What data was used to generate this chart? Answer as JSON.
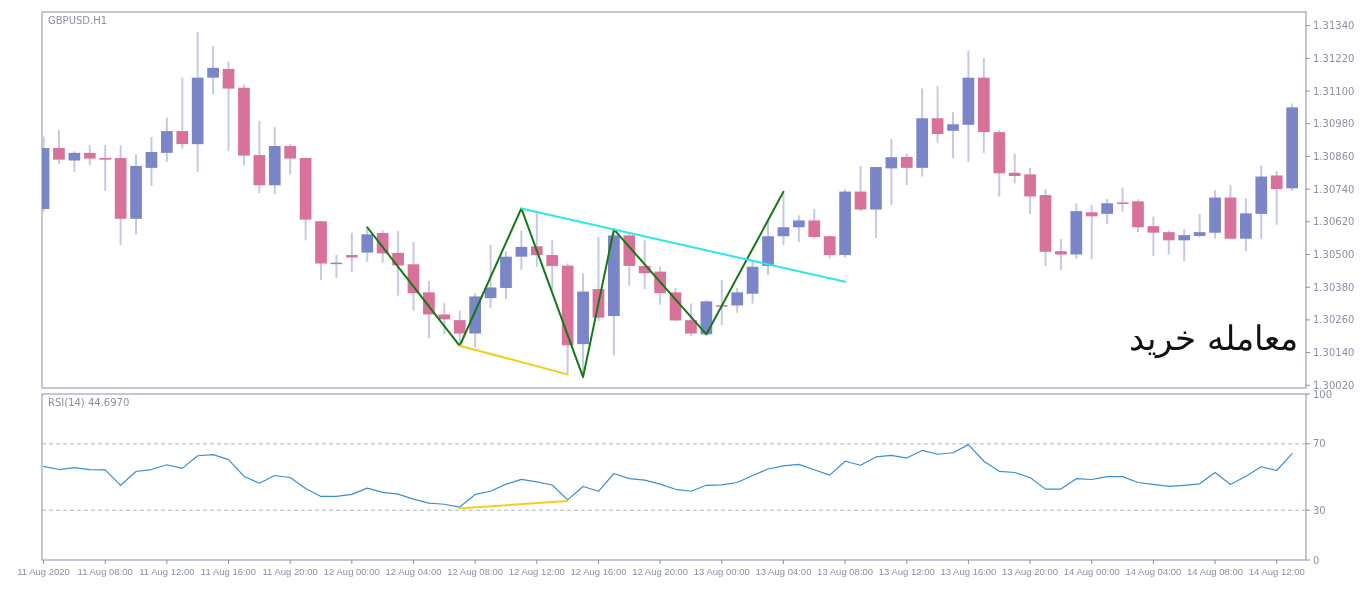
{
  "chart_data": [
    {
      "type": "candlestick",
      "title": "GBPUSD.H1",
      "tick_labels": "y",
      "x": [
        "2020-08-11T04:00",
        "2020-08-11T05:00",
        "2020-08-11T06:00",
        "2020-08-11T07:00",
        "2020-08-11T08:00",
        "2020-08-11T09:00",
        "2020-08-11T10:00",
        "2020-08-11T11:00",
        "2020-08-11T12:00",
        "2020-08-11T13:00",
        "2020-08-11T14:00",
        "2020-08-11T15:00",
        "2020-08-11T16:00",
        "2020-08-11T17:00",
        "2020-08-11T18:00",
        "2020-08-11T19:00",
        "2020-08-11T20:00",
        "2020-08-11T21:00",
        "2020-08-11T22:00",
        "2020-08-11T23:00",
        "2020-08-12T00:00",
        "2020-08-12T01:00",
        "2020-08-12T02:00",
        "2020-08-12T03:00",
        "2020-08-12T04:00",
        "2020-08-12T05:00",
        "2020-08-12T06:00",
        "2020-08-12T07:00",
        "2020-08-12T08:00",
        "2020-08-12T09:00",
        "2020-08-12T10:00",
        "2020-08-12T11:00",
        "2020-08-12T12:00",
        "2020-08-12T13:00",
        "2020-08-12T14:00",
        "2020-08-12T15:00",
        "2020-08-12T16:00",
        "2020-08-12T17:00",
        "2020-08-12T18:00",
        "2020-08-12T19:00",
        "2020-08-12T20:00",
        "2020-08-12T21:00",
        "2020-08-12T22:00",
        "2020-08-12T23:00",
        "2020-08-13T00:00",
        "2020-08-13T01:00",
        "2020-08-13T02:00",
        "2020-08-13T03:00",
        "2020-08-13T04:00",
        "2020-08-13T05:00",
        "2020-08-13T06:00",
        "2020-08-13T07:00",
        "2020-08-13T08:00",
        "2020-08-13T09:00",
        "2020-08-13T10:00",
        "2020-08-13T11:00",
        "2020-08-13T12:00",
        "2020-08-13T13:00",
        "2020-08-13T14:00",
        "2020-08-13T15:00",
        "2020-08-13T16:00",
        "2020-08-13T17:00",
        "2020-08-13T18:00",
        "2020-08-13T19:00",
        "2020-08-13T20:00",
        "2020-08-13T21:00",
        "2020-08-13T22:00",
        "2020-08-13T23:00",
        "2020-08-14T00:00",
        "2020-08-14T01:00",
        "2020-08-14T02:00",
        "2020-08-14T03:00",
        "2020-08-14T04:00",
        "2020-08-14T05:00",
        "2020-08-14T06:00",
        "2020-08-14T07:00",
        "2020-08-14T08:00",
        "2020-08-14T09:00",
        "2020-08-14T10:00",
        "2020-08-14T11:00",
        "2020-08-14T12:00",
        "2020-08-14T13:00"
      ],
      "ohlc": [
        [
          1.30667,
          1.30933,
          1.30655,
          1.30891
        ],
        [
          1.30891,
          1.30957,
          1.30833,
          1.30848
        ],
        [
          1.30845,
          1.30879,
          1.30803,
          1.30873
        ],
        [
          1.30873,
          1.30901,
          1.30827,
          1.30852
        ],
        [
          1.30854,
          1.30901,
          1.30734,
          1.30848
        ],
        [
          1.30854,
          1.30901,
          1.30534,
          1.30631
        ],
        [
          1.30631,
          1.30867,
          1.30573,
          1.30825
        ],
        [
          1.30818,
          1.30931,
          1.30752,
          1.30876
        ],
        [
          1.30873,
          1.31003,
          1.3084,
          1.30953
        ],
        [
          1.30953,
          1.31149,
          1.30888,
          1.30905
        ],
        [
          1.30905,
          1.31316,
          1.30803,
          1.31149
        ],
        [
          1.31149,
          1.31265,
          1.31088,
          1.31185
        ],
        [
          1.31181,
          1.31208,
          1.30881,
          1.31109
        ],
        [
          1.31112,
          1.31123,
          1.30827,
          1.30863
        ],
        [
          1.30865,
          1.30991,
          1.30725,
          1.30754
        ],
        [
          1.30754,
          1.30967,
          1.30721,
          1.30898
        ],
        [
          1.30898,
          1.30905,
          1.30794,
          1.30852
        ],
        [
          1.30854,
          1.30854,
          1.30552,
          1.30628
        ],
        [
          1.30622,
          1.30622,
          1.30407,
          1.30467
        ],
        [
          1.30467,
          1.30498,
          1.30413,
          1.3047
        ],
        [
          1.30498,
          1.3058,
          1.30435,
          1.30489
        ],
        [
          1.30507,
          1.306,
          1.30473,
          1.30574
        ],
        [
          1.30579,
          1.30588,
          1.3047,
          1.30504
        ],
        [
          1.30506,
          1.30586,
          1.30349,
          1.3046
        ],
        [
          1.30464,
          1.30546,
          1.30294,
          1.30358
        ],
        [
          1.30361,
          1.30403,
          1.30193,
          1.3028
        ],
        [
          1.3028,
          1.30322,
          1.30207,
          1.30262
        ],
        [
          1.30259,
          1.30294,
          1.30171,
          1.3021
        ],
        [
          1.3021,
          1.30358,
          1.30159,
          1.30346
        ],
        [
          1.3034,
          1.30536,
          1.30304,
          1.30379
        ],
        [
          1.30377,
          1.30512,
          1.30337,
          1.30492
        ],
        [
          1.30492,
          1.30588,
          1.30443,
          1.30528
        ],
        [
          1.3053,
          1.30655,
          1.30455,
          1.30498
        ],
        [
          1.30498,
          1.30552,
          1.3037,
          1.30458
        ],
        [
          1.30459,
          1.30467,
          1.30062,
          1.30167
        ],
        [
          1.30171,
          1.30431,
          1.30062,
          1.30364
        ],
        [
          1.30373,
          1.30564,
          1.30256,
          1.30268
        ],
        [
          1.30274,
          1.30588,
          1.30129,
          1.3057
        ],
        [
          1.3057,
          1.30576,
          1.30385,
          1.30458
        ],
        [
          1.30458,
          1.30552,
          1.30373,
          1.30431
        ],
        [
          1.30437,
          1.30455,
          1.30316,
          1.30358
        ],
        [
          1.30361,
          1.30377,
          1.30256,
          1.30258
        ],
        [
          1.30259,
          1.3032,
          1.30201,
          1.3021
        ],
        [
          1.30207,
          1.30332,
          1.30204,
          1.30328
        ],
        [
          1.30314,
          1.30407,
          1.3024,
          1.3031
        ],
        [
          1.30313,
          1.30377,
          1.30286,
          1.30361
        ],
        [
          1.30356,
          1.30473,
          1.3032,
          1.30455
        ],
        [
          1.30458,
          1.30625,
          1.30425,
          1.30567
        ],
        [
          1.30567,
          1.30721,
          1.30534,
          1.306
        ],
        [
          1.306,
          1.30643,
          1.30546,
          1.30625
        ],
        [
          1.30625,
          1.30667,
          1.30558,
          1.30564
        ],
        [
          1.30567,
          1.3057,
          1.30485,
          1.30498
        ],
        [
          1.30498,
          1.3074,
          1.30489,
          1.30731
        ],
        [
          1.30731,
          1.30824,
          1.30659,
          1.30665
        ],
        [
          1.30665,
          1.30821,
          1.30561,
          1.30821
        ],
        [
          1.30816,
          1.30924,
          1.30682,
          1.30857
        ],
        [
          1.30858,
          1.3087,
          1.30754,
          1.30818
        ],
        [
          1.30818,
          1.31109,
          1.30786,
          1.31
        ],
        [
          1.31,
          1.31117,
          1.30909,
          1.30942
        ],
        [
          1.30954,
          1.31022,
          1.30854,
          1.30978
        ],
        [
          1.30976,
          1.31248,
          1.3084,
          1.31149
        ],
        [
          1.31149,
          1.31221,
          1.30873,
          1.30949
        ],
        [
          1.30949,
          1.30957,
          1.30713,
          1.30798
        ],
        [
          1.308,
          1.3087,
          1.30761,
          1.30788
        ],
        [
          1.30794,
          1.30818,
          1.30649,
          1.30713
        ],
        [
          1.30718,
          1.3074,
          1.30458,
          1.3051
        ],
        [
          1.30512,
          1.30556,
          1.30443,
          1.305
        ],
        [
          1.305,
          1.30688,
          1.30485,
          1.30659
        ],
        [
          1.30655,
          1.30682,
          1.30483,
          1.3064
        ],
        [
          1.30649,
          1.30703,
          1.30613,
          1.30688
        ],
        [
          1.30691,
          1.30746,
          1.30657,
          1.30688
        ],
        [
          1.30695,
          1.30703,
          1.30582,
          1.306
        ],
        [
          1.30604,
          1.30639,
          1.30494,
          1.3058
        ],
        [
          1.30582,
          1.30588,
          1.305,
          1.30552
        ],
        [
          1.30552,
          1.30594,
          1.30476,
          1.30571
        ],
        [
          1.30568,
          1.30649,
          1.30564,
          1.30582
        ],
        [
          1.3058,
          1.30736,
          1.30558,
          1.30709
        ],
        [
          1.30709,
          1.30754,
          1.30556,
          1.30558
        ],
        [
          1.30558,
          1.30706,
          1.30512,
          1.30651
        ],
        [
          1.30649,
          1.30827,
          1.30556,
          1.30786
        ],
        [
          1.3079,
          1.30806,
          1.30609,
          1.3074
        ],
        [
          1.30743,
          1.31054,
          1.30734,
          1.3104
        ]
      ],
      "colors": [
        "#7b86c8",
        "#d8729b",
        "#7b86c8",
        "#d8729b",
        "#d8729b",
        "#d8729b",
        "#7b86c8",
        "#7b86c8",
        "#7b86c8",
        "#d8729b",
        "#7b86c8",
        "#7b86c8",
        "#d8729b",
        "#d8729b",
        "#d8729b",
        "#7b86c8",
        "#d8729b",
        "#d8729b",
        "#d8729b",
        "#7b86c8",
        "#d8729b",
        "#7b86c8",
        "#d8729b",
        "#d8729b",
        "#d8729b",
        "#d8729b",
        "#d8729b",
        "#d8729b",
        "#7b86c8",
        "#7b86c8",
        "#7b86c8",
        "#7b86c8",
        "#d8729b",
        "#d8729b",
        "#d8729b",
        "#7b86c8",
        "#d8729b",
        "#7b86c8",
        "#d8729b",
        "#d8729b",
        "#d8729b",
        "#d8729b",
        "#d8729b",
        "#7b86c8",
        "#d8729b",
        "#7b86c8",
        "#7b86c8",
        "#7b86c8",
        "#7b86c8",
        "#7b86c8",
        "#d8729b",
        "#d8729b",
        "#7b86c8",
        "#d8729b",
        "#7b86c8",
        "#7b86c8",
        "#d8729b",
        "#7b86c8",
        "#d8729b",
        "#7b86c8",
        "#7b86c8",
        "#d8729b",
        "#d8729b",
        "#d8729b",
        "#d8729b",
        "#d8729b",
        "#d8729b",
        "#7b86c8",
        "#d8729b",
        "#7b86c8",
        "#d8729b",
        "#d8729b",
        "#d8729b",
        "#d8729b",
        "#7b86c8",
        "#7b86c8",
        "#7b86c8",
        "#d8729b",
        "#7b86c8",
        "#7b86c8",
        "#d8729b",
        "#7b86c8"
      ],
      "series": [
        {
          "type": "line",
          "color": "#137a13",
          "x": [
            "2020-08-12T01:00",
            "2020-08-12T07:00",
            "2020-08-12T11:00",
            "2020-08-12T15:00",
            "2020-08-12T17:00",
            "2020-08-12T23:00",
            "2020-08-13T04:00"
          ],
          "values": [
            1.306,
            1.30165,
            1.30669,
            1.3005,
            1.30592,
            1.30207,
            1.3073
          ]
        },
        {
          "type": "line",
          "color": "#2ee6ee",
          "x": [
            "2020-08-12T11:00",
            "2020-08-13T08:00"
          ],
          "values": [
            1.30669,
            1.304
          ]
        },
        {
          "type": "line",
          "color": "#f4cc1a",
          "x": [
            "2020-08-12T07:00",
            "2020-08-12T14:00"
          ],
          "values": [
            1.30165,
            1.3006
          ]
        }
      ],
      "xlim": [
        "2020-08-11T03:54",
        "2020-08-14T13:54"
      ],
      "ylim": [
        1.3001,
        1.3139
      ],
      "yticks": [
        {
          "value": 1.3002,
          "label": "1.30020"
        },
        {
          "value": 1.3014,
          "label": "1.30140"
        },
        {
          "value": 1.3026,
          "label": "1.30260"
        },
        {
          "value": 1.3038,
          "label": "1.30380"
        },
        {
          "value": 1.305,
          "label": "1.30500"
        },
        {
          "value": 1.3062,
          "label": "1.30620"
        },
        {
          "value": 1.3074,
          "label": "1.30740"
        },
        {
          "value": 1.3086,
          "label": "1.30860"
        },
        {
          "value": 1.3098,
          "label": "1.30980"
        },
        {
          "value": 1.311,
          "label": "1.31100"
        },
        {
          "value": 1.3122,
          "label": "1.31220"
        },
        {
          "value": 1.3134,
          "label": "1.31340"
        }
      ],
      "annotations": [
        "معامله خرید"
      ]
    },
    {
      "type": "line",
      "title": "RSI(14) 44.6970",
      "x": [
        "2020-08-11T04:00",
        "2020-08-11T05:00",
        "2020-08-11T06:00",
        "2020-08-11T07:00",
        "2020-08-11T08:00",
        "2020-08-11T09:00",
        "2020-08-11T10:00",
        "2020-08-11T11:00",
        "2020-08-11T12:00",
        "2020-08-11T13:00",
        "2020-08-11T14:00",
        "2020-08-11T15:00",
        "2020-08-11T16:00",
        "2020-08-11T17:00",
        "2020-08-11T18:00",
        "2020-08-11T19:00",
        "2020-08-11T20:00",
        "2020-08-11T21:00",
        "2020-08-11T22:00",
        "2020-08-11T23:00",
        "2020-08-12T00:00",
        "2020-08-12T01:00",
        "2020-08-12T02:00",
        "2020-08-12T03:00",
        "2020-08-12T04:00",
        "2020-08-12T05:00",
        "2020-08-12T06:00",
        "2020-08-12T07:00",
        "2020-08-12T08:00",
        "2020-08-12T09:00",
        "2020-08-12T10:00",
        "2020-08-12T11:00",
        "2020-08-12T12:00",
        "2020-08-12T13:00",
        "2020-08-12T14:00",
        "2020-08-12T15:00",
        "2020-08-12T16:00",
        "2020-08-12T17:00",
        "2020-08-12T18:00",
        "2020-08-12T19:00",
        "2020-08-12T20:00",
        "2020-08-12T21:00",
        "2020-08-12T22:00",
        "2020-08-12T23:00",
        "2020-08-13T00:00",
        "2020-08-13T01:00",
        "2020-08-13T02:00",
        "2020-08-13T03:00",
        "2020-08-13T04:00",
        "2020-08-13T05:00",
        "2020-08-13T06:00",
        "2020-08-13T07:00",
        "2020-08-13T08:00",
        "2020-08-13T09:00",
        "2020-08-13T10:00",
        "2020-08-13T11:00",
        "2020-08-13T12:00",
        "2020-08-13T13:00",
        "2020-08-13T14:00",
        "2020-08-13T15:00",
        "2020-08-13T16:00",
        "2020-08-13T17:00",
        "2020-08-13T18:00",
        "2020-08-13T19:00",
        "2020-08-13T20:00",
        "2020-08-13T21:00",
        "2020-08-13T22:00",
        "2020-08-13T23:00",
        "2020-08-14T00:00",
        "2020-08-14T01:00",
        "2020-08-14T02:00",
        "2020-08-14T03:00",
        "2020-08-14T04:00",
        "2020-08-14T05:00",
        "2020-08-14T06:00",
        "2020-08-14T07:00",
        "2020-08-14T08:00",
        "2020-08-14T09:00",
        "2020-08-14T10:00",
        "2020-08-14T11:00",
        "2020-08-14T12:00",
        "2020-08-14T13:00"
      ],
      "series": [
        {
          "color": "#3a8fd0",
          "values": [
            56.4,
            54.5,
            55.7,
            54.5,
            54.3,
            45.0,
            53.3,
            54.5,
            57.4,
            55.2,
            62.8,
            63.5,
            60.5,
            50.5,
            46.2,
            50.9,
            49.7,
            43.1,
            38.3,
            38.3,
            39.5,
            43.3,
            40.7,
            39.7,
            36.7,
            34.3,
            33.6,
            31.9,
            39.5,
            41.4,
            45.7,
            48.6,
            47.1,
            45.2,
            36.2,
            44.3,
            41.4,
            52.1,
            49.0,
            48.1,
            45.7,
            42.6,
            41.4,
            45.0,
            45.3,
            46.7,
            50.9,
            54.8,
            56.7,
            57.6,
            54.4,
            51.1,
            59.5,
            57.1,
            62.1,
            63.0,
            61.4,
            66.0,
            63.7,
            64.6,
            69.5,
            59.5,
            53.4,
            52.7,
            49.7,
            42.7,
            42.7,
            49.0,
            48.5,
            50.2,
            50.2,
            46.7,
            45.5,
            44.3,
            45.0,
            45.9,
            52.7,
            45.5,
            50.4,
            56.2,
            53.9,
            64.1
          ]
        },
        {
          "type": "line",
          "color": "#f4cc1a",
          "x": [
            "2020-08-12T07:00",
            "2020-08-12T14:00"
          ],
          "values": [
            31.1,
            35.5
          ]
        }
      ],
      "xlim": [
        "2020-08-11T03:54",
        "2020-08-14T13:54"
      ],
      "ylim": [
        0,
        100
      ],
      "yticks": [
        0,
        30,
        70,
        100
      ],
      "xticks": [
        {
          "value": "2020-08-11T04:00",
          "label": "11 Aug 2020"
        },
        {
          "value": "2020-08-11T08:00",
          "label": "11 Aug 08:00"
        },
        {
          "value": "2020-08-11T12:00",
          "label": "11 Aug 12:00"
        },
        {
          "value": "2020-08-11T16:00",
          "label": "11 Aug 16:00"
        },
        {
          "value": "2020-08-11T20:00",
          "label": "11 Aug 20:00"
        },
        {
          "value": "2020-08-12T00:00",
          "label": "12 Aug 00:00"
        },
        {
          "value": "2020-08-12T04:00",
          "label": "12 Aug 04:00"
        },
        {
          "value": "2020-08-12T08:00",
          "label": "12 Aug 08:00"
        },
        {
          "value": "2020-08-12T12:00",
          "label": "12 Aug 12:00"
        },
        {
          "value": "2020-08-12T16:00",
          "label": "12 Aug 16:00"
        },
        {
          "value": "2020-08-12T20:00",
          "label": "12 Aug 20:00"
        },
        {
          "value": "2020-08-13T00:00",
          "label": "13 Aug 00:00"
        },
        {
          "value": "2020-08-13T04:00",
          "label": "13 Aug 04:00"
        },
        {
          "value": "2020-08-13T08:00",
          "label": "13 Aug 08:00"
        },
        {
          "value": "2020-08-13T12:00",
          "label": "13 Aug 12:00"
        },
        {
          "value": "2020-08-13T16:00",
          "label": "13 Aug 16:00"
        },
        {
          "value": "2020-08-13T20:00",
          "label": "13 Aug 20:00"
        },
        {
          "value": "2020-08-14T00:00",
          "label": "14 Aug 00:00"
        },
        {
          "value": "2020-08-14T04:00",
          "label": "14 Aug 04:00"
        },
        {
          "value": "2020-08-14T08:00",
          "label": "14 Aug 08:00"
        },
        {
          "value": "2020-08-14T12:00",
          "label": "14 Aug 12:00"
        }
      ],
      "ref_lines": [
        {
          "axis": "y",
          "value": 30,
          "color": "#b4b4b4",
          "line_style": "dashed"
        },
        {
          "axis": "y",
          "value": 70,
          "color": "#b4b4b4",
          "line_style": "dashed"
        }
      ]
    }
  ]
}
